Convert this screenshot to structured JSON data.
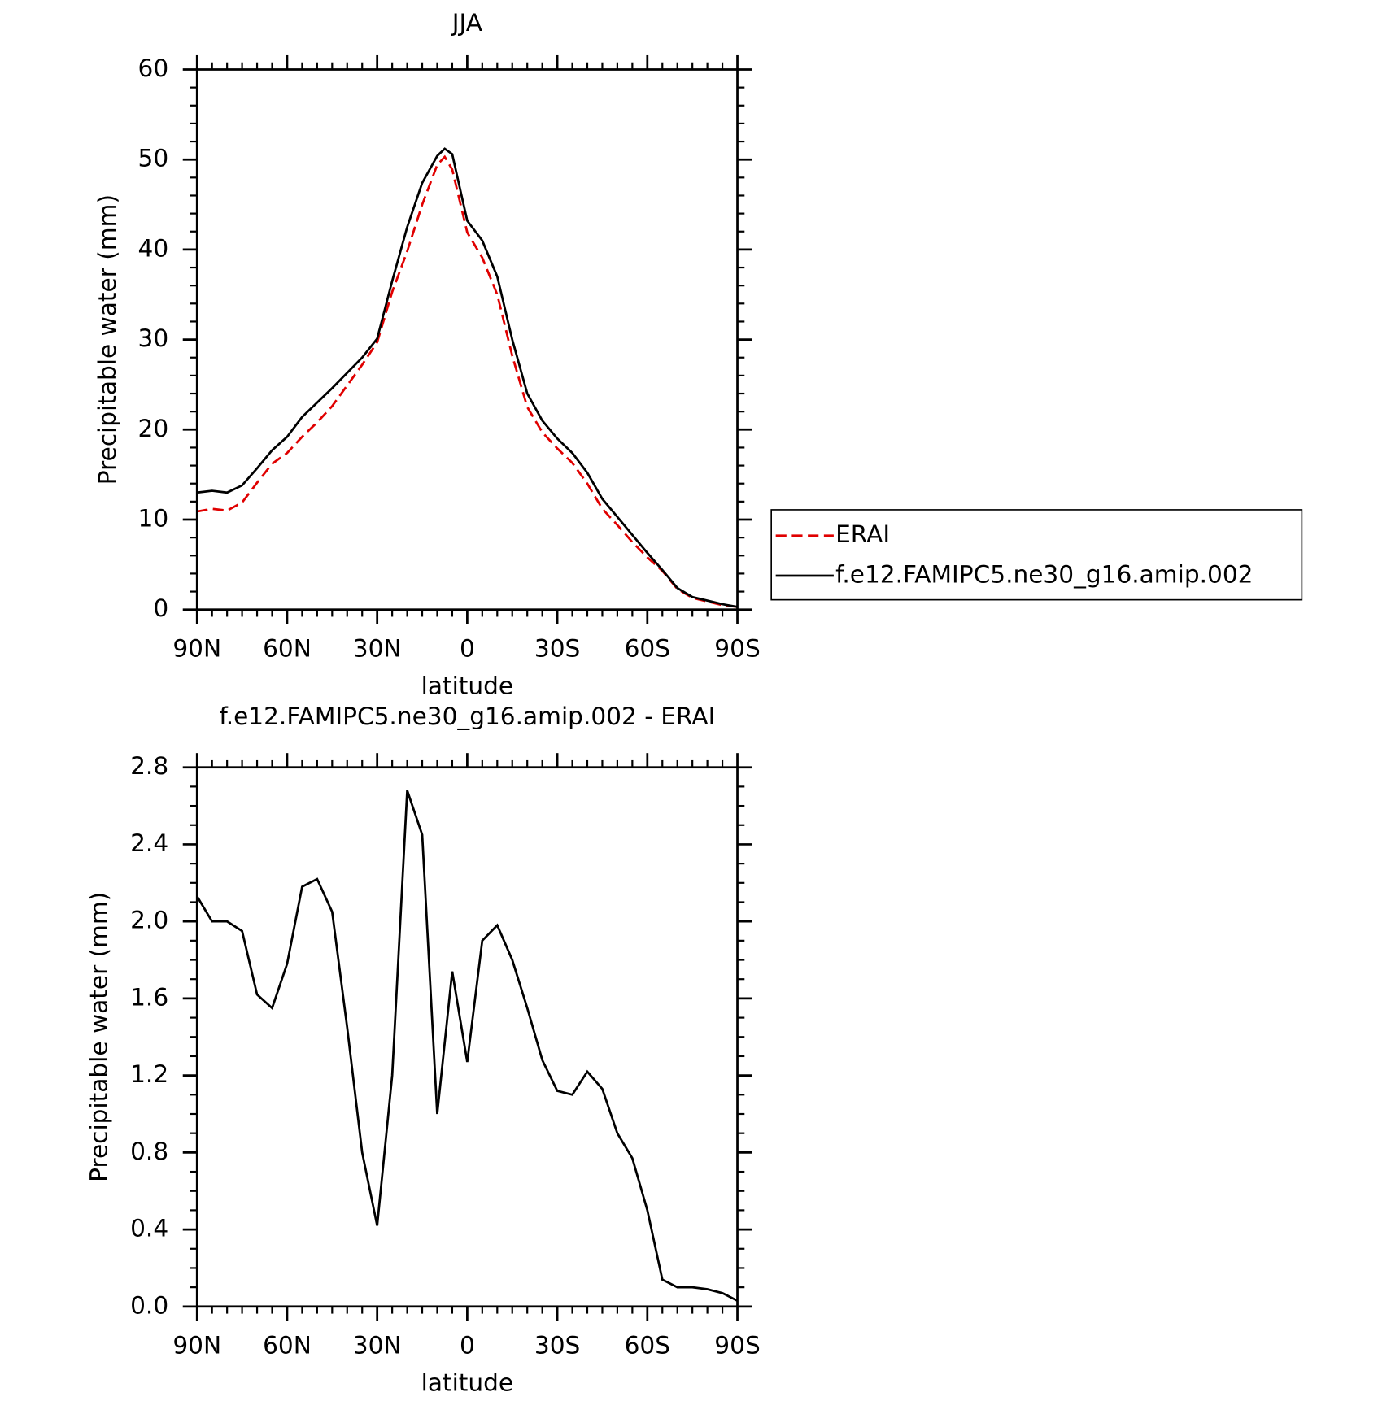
{
  "chart_data": [
    {
      "type": "line",
      "title": "JJA",
      "x_label": "latitude",
      "y_label": "Precipitable water (mm)",
      "x": [
        90,
        85,
        80,
        75,
        70,
        65,
        60,
        55,
        50,
        45,
        40,
        35,
        30,
        25,
        20,
        15,
        10,
        7.5,
        5,
        0,
        -5,
        -10,
        -15,
        -20,
        -25,
        -30,
        -35,
        -40,
        -45,
        -50,
        -55,
        -60,
        -65,
        -70,
        -75,
        -80,
        -85,
        -90
      ],
      "series": [
        {
          "name": "ERAI",
          "color": "#e00000",
          "line_style": "dashed",
          "values": [
            10.9,
            11.2,
            11,
            11.9,
            14.1,
            16.2,
            17.4,
            19.2,
            20.8,
            22.6,
            24.9,
            27.2,
            29.7,
            35.3,
            39.8,
            45,
            49.4,
            50.3,
            48.9,
            41.9,
            39.1,
            35,
            28.2,
            22.5,
            19.7,
            17.9,
            16.3,
            14,
            11.2,
            9.4,
            7.5,
            5.8,
            4.3,
            2.3,
            1.3,
            0.9,
            0.5,
            0.3
          ]
        },
        {
          "name": "f.e12.FAMIPC5.ne30_g16.amip.002",
          "color": "#000000",
          "line_style": "solid",
          "values": [
            13,
            13.2,
            13,
            13.8,
            15.7,
            17.7,
            19.2,
            21.4,
            23,
            24.6,
            26.3,
            28,
            30.1,
            36.5,
            42.5,
            47.4,
            50.4,
            51.2,
            50.6,
            43.2,
            41,
            37,
            30,
            24,
            21,
            19,
            17.4,
            15.2,
            12.3,
            10.3,
            8.3,
            6.3,
            4.4,
            2.4,
            1.4,
            1,
            0.6,
            0.3
          ]
        }
      ],
      "xlim": [
        90,
        -90
      ],
      "xticks": [
        {
          "value": 90,
          "label": "90N"
        },
        {
          "value": 60,
          "label": "60N"
        },
        {
          "value": 30,
          "label": "30N"
        },
        0,
        {
          "value": -30,
          "label": "30S"
        },
        {
          "value": -60,
          "label": "60S"
        },
        {
          "value": -90,
          "label": "90S"
        }
      ],
      "ylim": [
        0,
        60
      ],
      "yticks": [
        0,
        10,
        20,
        30,
        40,
        50,
        60
      ],
      "legend": "right"
    },
    {
      "type": "line",
      "title": "f.e12.FAMIPC5.ne30_g16.amip.002 - ERAI",
      "x_label": "latitude",
      "y_label": "Precipitable water (mm)",
      "x": [
        90,
        85,
        80,
        75,
        70,
        65,
        60,
        55,
        50,
        45,
        40,
        35,
        30,
        25,
        20,
        15,
        10,
        5,
        0,
        -5,
        -10,
        -15,
        -20,
        -25,
        -30,
        -35,
        -40,
        -45,
        -50,
        -55,
        -60,
        -65,
        -70,
        -75,
        -80,
        -85,
        -90
      ],
      "series": [
        {
          "name": "f.e12.FAMIPC5.ne30_g16.amip.002 - ERAI",
          "color": "#000000",
          "line_style": "solid",
          "values": [
            2.13,
            2.0,
            2.0,
            1.95,
            1.62,
            1.55,
            1.78,
            2.18,
            2.22,
            2.05,
            1.45,
            0.8,
            0.42,
            1.2,
            2.68,
            2.45,
            1.0,
            1.74,
            1.27,
            1.9,
            1.98,
            1.8,
            1.55,
            1.28,
            1.12,
            1.1,
            1.22,
            1.13,
            0.9,
            0.77,
            0.5,
            0.14,
            0.1,
            0.1,
            0.09,
            0.07,
            0.03
          ]
        }
      ],
      "xlim": [
        90,
        -90
      ],
      "xticks": [
        {
          "value": 90,
          "label": "90N"
        },
        {
          "value": 60,
          "label": "60N"
        },
        {
          "value": 30,
          "label": "30N"
        },
        0,
        {
          "value": -30,
          "label": "30S"
        },
        {
          "value": -60,
          "label": "60S"
        },
        {
          "value": -90,
          "label": "90S"
        }
      ],
      "ylim": [
        0,
        2.8
      ],
      "yticks": [
        {
          "value": 0,
          "label": "0.0"
        },
        0.4,
        0.8,
        1.2,
        1.6,
        {
          "value": 2,
          "label": "2.0"
        },
        2.4,
        2.8
      ]
    }
  ]
}
